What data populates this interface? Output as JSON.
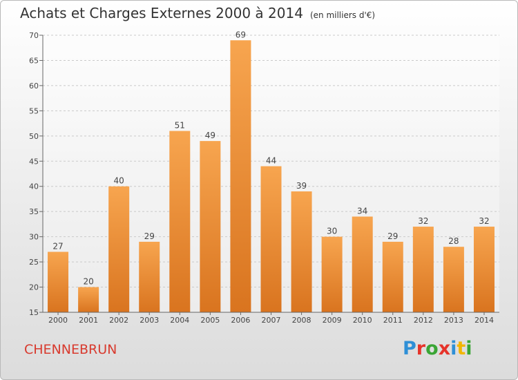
{
  "title": "Achats et Charges Externes 2000 à 2014",
  "subtitle": "(en milliers d'€)",
  "commune": "CHENNEBRUN",
  "logo_letters": [
    "P",
    "r",
    "o",
    "x",
    "i",
    "t",
    "i"
  ],
  "logo_colors": [
    "#2e8fd6",
    "#e6332a",
    "#3aa535",
    "#e6332a",
    "#2e8fd6",
    "#f2b600",
    "#3aa535"
  ],
  "colors": {
    "bar": "#f19a3e",
    "bar_dark": "#d9741f",
    "commune": "#d83a2e"
  },
  "chart_data": {
    "type": "bar",
    "title": "Achats et Charges Externes 2000 à 2014",
    "subtitle": "(en milliers d'€)",
    "xlabel": "",
    "ylabel": "",
    "categories": [
      "2000",
      "2001",
      "2002",
      "2003",
      "2004",
      "2005",
      "2006",
      "2007",
      "2008",
      "2009",
      "2010",
      "2011",
      "2012",
      "2013",
      "2014"
    ],
    "values": [
      27,
      20,
      40,
      29,
      51,
      49,
      69,
      44,
      39,
      30,
      34,
      29,
      32,
      28,
      32
    ],
    "ylim": [
      15,
      70
    ],
    "yticks": [
      15,
      20,
      25,
      30,
      35,
      40,
      45,
      50,
      55,
      60,
      65,
      70
    ],
    "grid": true
  }
}
